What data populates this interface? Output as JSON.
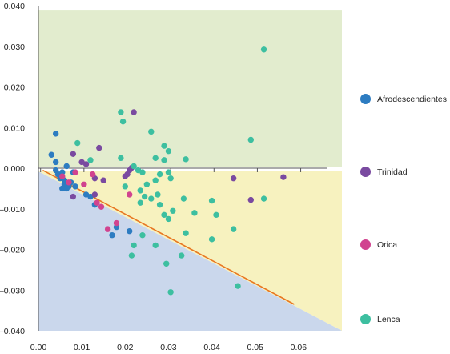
{
  "chart_data": {
    "type": "scatter",
    "title": "",
    "xlabel": "",
    "ylabel": "",
    "xlim": [
      0,
      0.07
    ],
    "ylim": [
      -0.04,
      0.04
    ],
    "x_ticks": [
      "0.00",
      "0.01",
      "0.02",
      "0.03",
      "0.04",
      "0.05",
      "0.06"
    ],
    "y_ticks": [
      "0.040",
      "0.030",
      "0.020",
      "0.010",
      "0.000",
      "–0.010",
      "–0.020",
      "–0.030",
      "–0.040"
    ],
    "regions": [
      {
        "name": "upper",
        "color": "#e2ecce"
      },
      {
        "name": "lower-right",
        "color": "#f7f2bf"
      },
      {
        "name": "lower-left",
        "color": "#cad7ec"
      }
    ],
    "trend_line": {
      "color": "#e87722",
      "points": [
        [
          0.001,
          -0.0005
        ],
        [
          0.059,
          -0.0335
        ]
      ]
    },
    "legend_position": "right",
    "series": [
      {
        "name": "Afrodescendientes",
        "color": "#2d7cc1",
        "points": [
          [
            0.003,
            0.0033
          ],
          [
            0.004,
            0.0085
          ],
          [
            0.004,
            0.0015
          ],
          [
            0.004,
            -0.0005
          ],
          [
            0.0045,
            -0.0015
          ],
          [
            0.005,
            -0.0025
          ],
          [
            0.0055,
            -0.001
          ],
          [
            0.006,
            -0.003
          ],
          [
            0.006,
            -0.004
          ],
          [
            0.0055,
            -0.005
          ],
          [
            0.0065,
            -0.005
          ],
          [
            0.007,
            -0.0045
          ],
          [
            0.0075,
            -0.0035
          ],
          [
            0.0065,
            0.0005
          ],
          [
            0.008,
            -0.001
          ],
          [
            0.0085,
            -0.0045
          ],
          [
            0.011,
            -0.0065
          ],
          [
            0.012,
            -0.007
          ],
          [
            0.013,
            -0.009
          ],
          [
            0.017,
            -0.0165
          ],
          [
            0.018,
            -0.0145
          ],
          [
            0.021,
            -0.0155
          ]
        ]
      },
      {
        "name": "Trinidad",
        "color": "#7a4aa0",
        "points": [
          [
            0.008,
            0.0035
          ],
          [
            0.01,
            0.0015
          ],
          [
            0.011,
            0.001
          ],
          [
            0.014,
            0.005
          ],
          [
            0.013,
            -0.0025
          ],
          [
            0.015,
            -0.003
          ],
          [
            0.008,
            -0.007
          ],
          [
            0.013,
            -0.0065
          ],
          [
            0.02,
            -0.002
          ],
          [
            0.0205,
            -0.0015
          ],
          [
            0.021,
            -0.0005
          ],
          [
            0.0215,
            0.0001
          ],
          [
            0.022,
            0.0138
          ],
          [
            0.045,
            -0.0025
          ],
          [
            0.049,
            -0.0078
          ],
          [
            0.0565,
            -0.0022
          ]
        ]
      },
      {
        "name": "Orica",
        "color": "#d1438f",
        "points": [
          [
            0.0055,
            -0.002
          ],
          [
            0.007,
            -0.0035
          ],
          [
            0.0085,
            -0.001
          ],
          [
            0.0105,
            -0.004
          ],
          [
            0.0125,
            -0.0015
          ],
          [
            0.0135,
            -0.0085
          ],
          [
            0.0145,
            -0.0095
          ],
          [
            0.016,
            -0.015
          ],
          [
            0.018,
            -0.0135
          ],
          [
            0.021,
            -0.0065
          ]
        ]
      },
      {
        "name": "Lenca",
        "color": "#3dbfa0",
        "points": [
          [
            0.009,
            0.0062
          ],
          [
            0.012,
            0.002
          ],
          [
            0.019,
            0.0138
          ],
          [
            0.0195,
            0.0115
          ],
          [
            0.019,
            0.0025
          ],
          [
            0.022,
            0.0005
          ],
          [
            0.023,
            -0.0005
          ],
          [
            0.024,
            -0.001
          ],
          [
            0.026,
            0.009
          ],
          [
            0.027,
            0.0025
          ],
          [
            0.029,
            0.0055
          ],
          [
            0.03,
            0.0042
          ],
          [
            0.029,
            0.002
          ],
          [
            0.03,
            -0.001
          ],
          [
            0.0305,
            -0.0025
          ],
          [
            0.028,
            -0.0015
          ],
          [
            0.027,
            -0.003
          ],
          [
            0.025,
            -0.004
          ],
          [
            0.0235,
            -0.0055
          ],
          [
            0.0245,
            -0.007
          ],
          [
            0.0235,
            -0.0085
          ],
          [
            0.026,
            -0.0075
          ],
          [
            0.0275,
            -0.0065
          ],
          [
            0.028,
            -0.009
          ],
          [
            0.029,
            -0.0115
          ],
          [
            0.03,
            -0.0125
          ],
          [
            0.031,
            -0.0105
          ],
          [
            0.0335,
            -0.0075
          ],
          [
            0.034,
            0.0022
          ],
          [
            0.036,
            -0.011
          ],
          [
            0.034,
            -0.016
          ],
          [
            0.04,
            -0.008
          ],
          [
            0.041,
            -0.0115
          ],
          [
            0.04,
            -0.0175
          ],
          [
            0.045,
            -0.015
          ],
          [
            0.052,
            -0.0075
          ],
          [
            0.049,
            0.007
          ],
          [
            0.052,
            0.0292
          ],
          [
            0.024,
            -0.0165
          ],
          [
            0.022,
            -0.019
          ],
          [
            0.0215,
            -0.0215
          ],
          [
            0.027,
            -0.019
          ],
          [
            0.0295,
            -0.0235
          ],
          [
            0.033,
            -0.0215
          ],
          [
            0.0305,
            -0.0305
          ],
          [
            0.046,
            -0.029
          ],
          [
            0.02,
            -0.0045
          ]
        ]
      }
    ]
  }
}
